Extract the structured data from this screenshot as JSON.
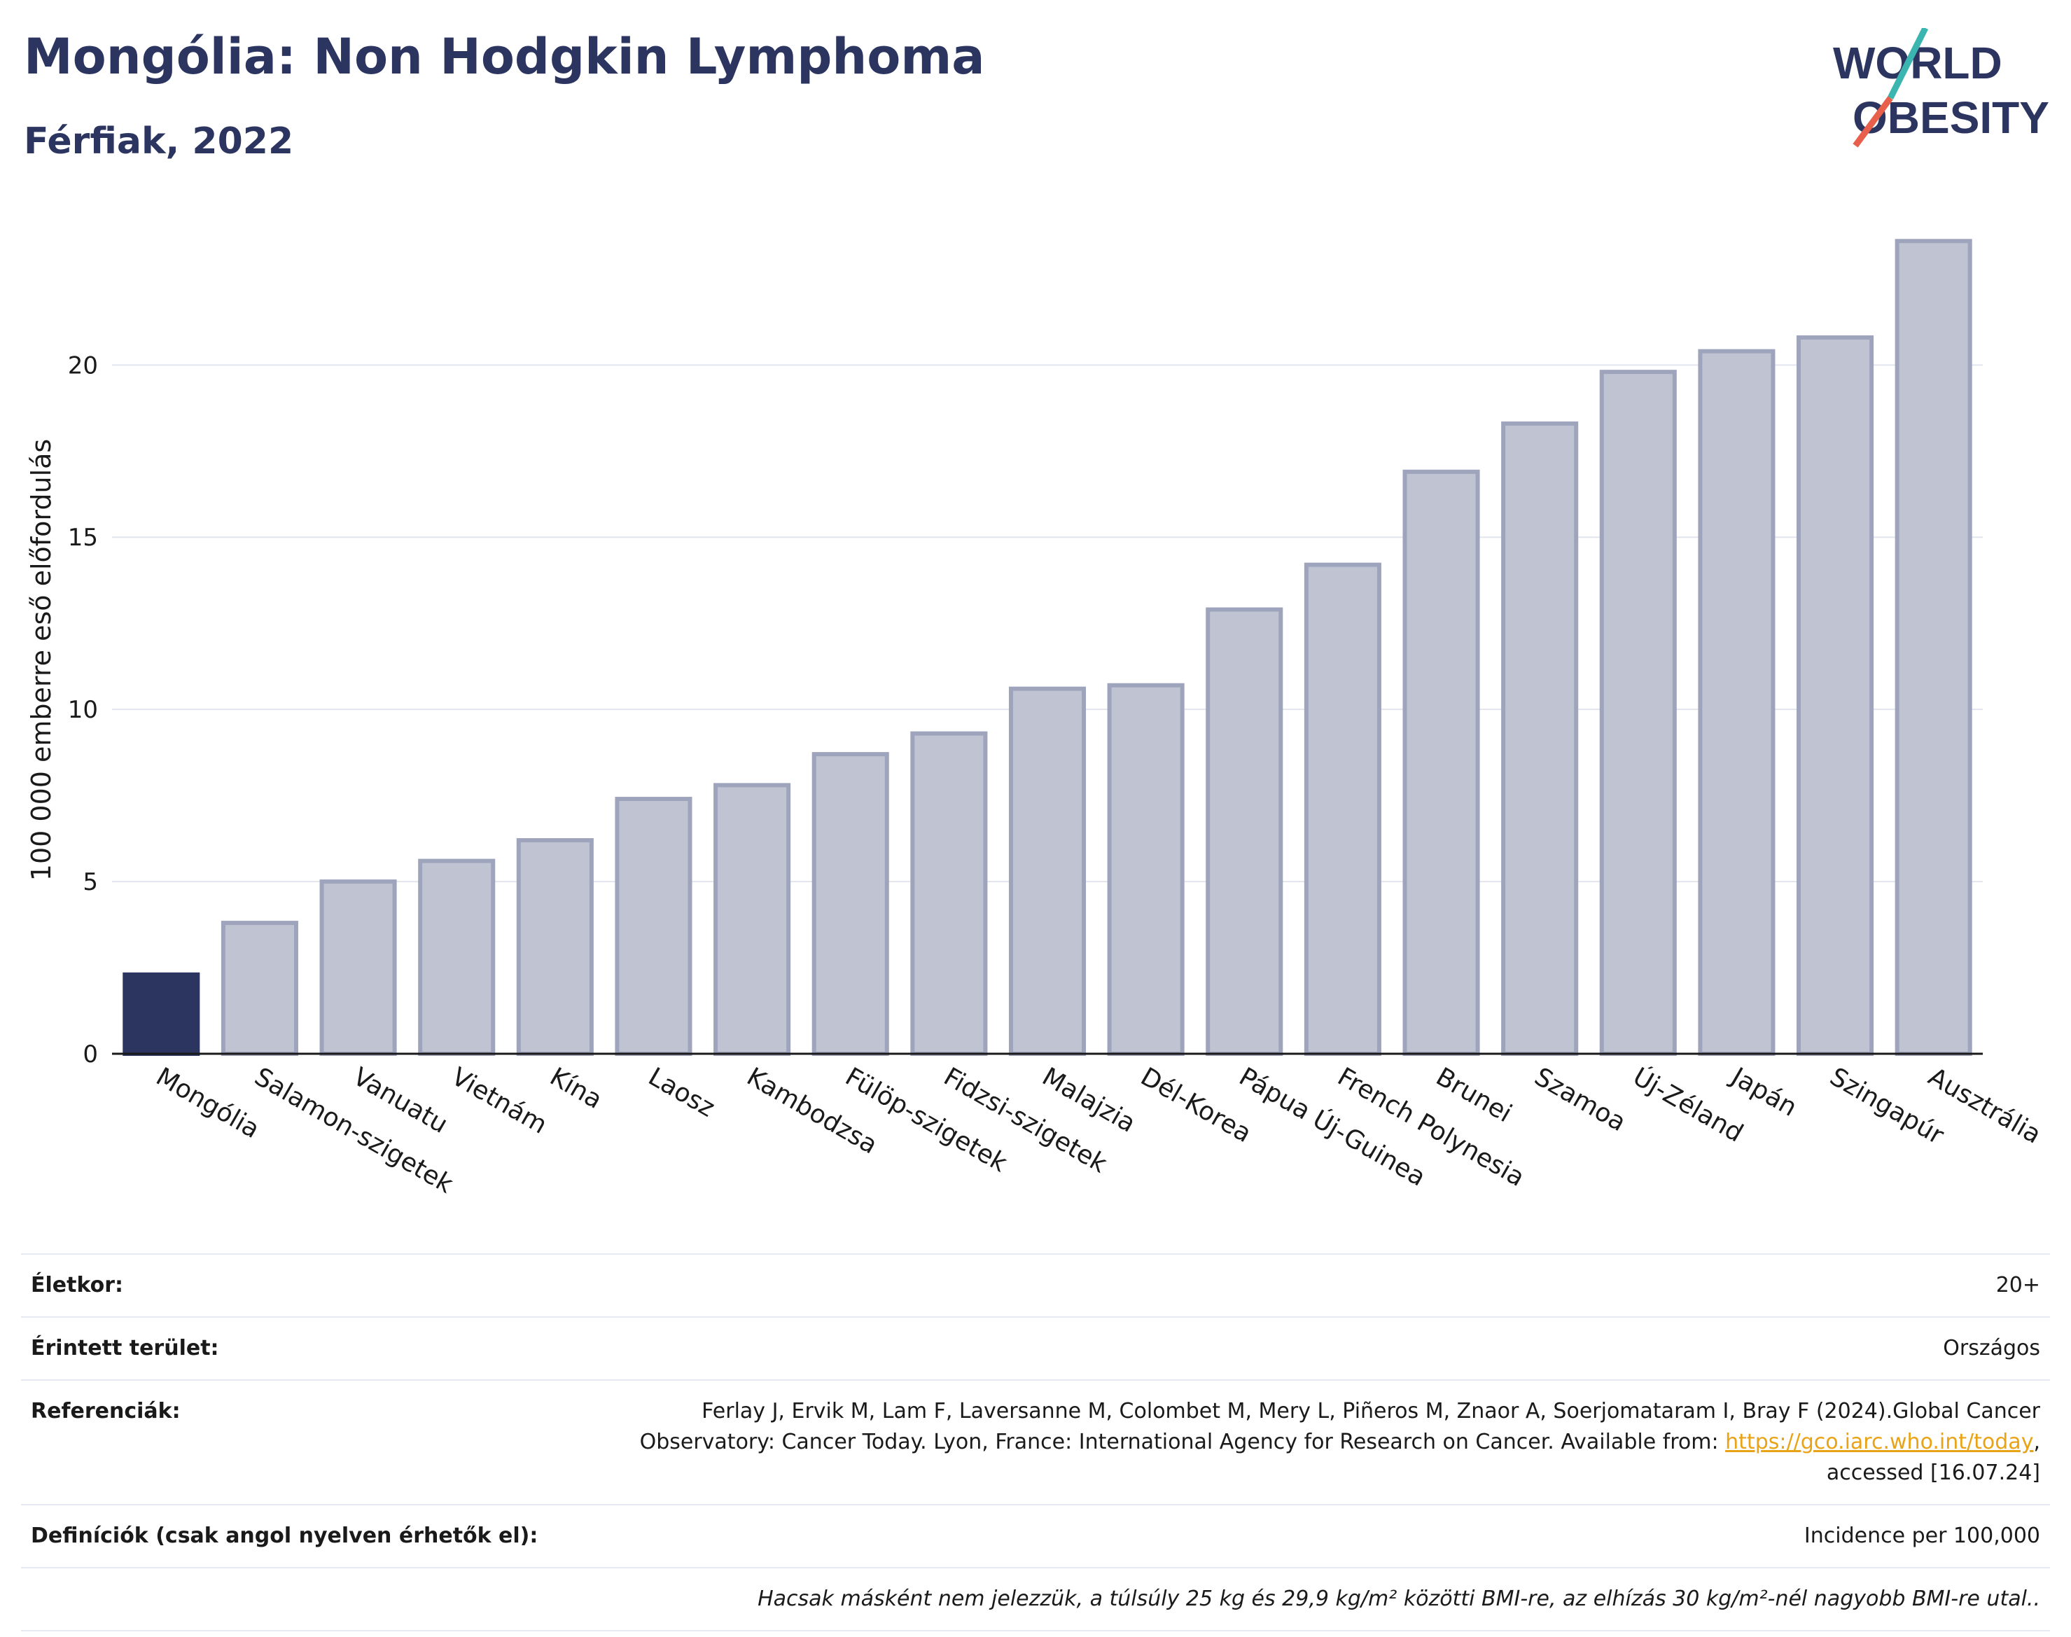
{
  "header": {
    "title": "Mongólia: Non Hodgkin Lymphoma",
    "subtitle": "Férfiak, 2022"
  },
  "logo": {
    "line1": "WORLD",
    "line2": "OBESITY",
    "colors": {
      "text": "#2b3560",
      "slash_teal": "#3ab5b0",
      "slash_red": "#e8604c"
    }
  },
  "chart_data": {
    "type": "bar",
    "title": "",
    "xlabel": "",
    "ylabel": "100 000 emberre eső előfordulás",
    "ylim": [
      0,
      24.5
    ],
    "yticks": [
      0,
      5,
      10,
      15,
      20
    ],
    "grid": true,
    "highlight_category": "Mongólia",
    "colors": {
      "highlight": "#2b3560",
      "bar_fill": "#c0c4d2",
      "bar_stroke": "#9ea4bc"
    },
    "categories": [
      "Mongólia",
      "Salamon-szigetek",
      "Vanuatu",
      "Vietnám",
      "Kína",
      "Laosz",
      "Kambodzsa",
      "Fülöp-szigetek",
      "Fidzsi-szigetek",
      "Malajzia",
      "Dél-Korea",
      "Pápua Új-Guinea",
      "French Polynesia",
      "Brunei",
      "Szamoa",
      "Új-Zéland",
      "Japán",
      "Szingapúr",
      "Ausztrália"
    ],
    "values": [
      2.3,
      3.8,
      5.0,
      5.6,
      6.2,
      7.4,
      7.8,
      8.7,
      9.3,
      10.6,
      10.7,
      12.9,
      14.2,
      16.9,
      18.3,
      19.8,
      20.4,
      20.8,
      23.6
    ]
  },
  "meta": {
    "age_label": "Életkor:",
    "age_value": "20+",
    "area_label": "Érintett terület:",
    "area_value": "Országos",
    "refs_label": "Referenciák:",
    "refs_text1": "Ferlay J, Ervik M, Lam F, Laversanne M, Colombet M, Mery L, Piñeros M, Znaor A, Soerjomataram I, Bray F (2024).Global Cancer",
    "refs_text2": "Observatory: Cancer Today. Lyon, France: International Agency for Research on Cancer. Available from: ",
    "refs_link": "https://gco.iarc.who.int/today",
    "refs_text3": ",",
    "refs_text4": "accessed [16.07.24]",
    "defs_label": "Definíciók (csak angol nyelven érhetők el):",
    "defs_value": "Incidence per 100,000",
    "note": "Hacsak másként nem jelezzük, a túlsúly 25 kg és 29,9 kg/m² közötti BMI-re, az elhízás 30 kg/m²-nél nagyobb BMI-re utal.."
  }
}
